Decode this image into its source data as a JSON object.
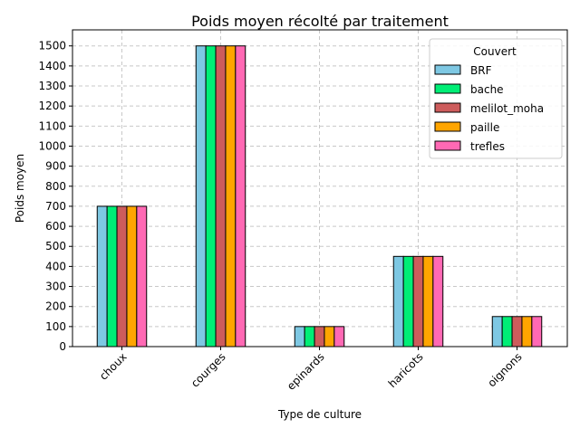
{
  "chart_data": {
    "type": "bar",
    "title": "Poids moyen récolté par traitement",
    "xlabel": "Type de culture",
    "ylabel": "Poids moyen",
    "categories": [
      "choux",
      "courges",
      "epinards",
      "haricots",
      "oignons"
    ],
    "ylim": [
      0,
      1580
    ],
    "yticks": [
      0,
      100,
      200,
      300,
      400,
      500,
      600,
      700,
      800,
      900,
      1000,
      1100,
      1200,
      1300,
      1400,
      1500
    ],
    "grid": true,
    "legend": {
      "title": "Couvert",
      "placement": "top-right"
    },
    "series": [
      {
        "name": "BRF",
        "color": "#7ec8e3",
        "values": [
          700,
          1500,
          100,
          450,
          150
        ]
      },
      {
        "name": "bache",
        "color": "#00ee76",
        "values": [
          700,
          1500,
          100,
          450,
          150
        ]
      },
      {
        "name": "melilot_moha",
        "color": "#cd5c5c",
        "values": [
          700,
          1500,
          100,
          450,
          150
        ]
      },
      {
        "name": "paille",
        "color": "#ffa500",
        "values": [
          700,
          1500,
          100,
          450,
          150
        ]
      },
      {
        "name": "trefles",
        "color": "#ff69b4",
        "values": [
          700,
          1500,
          100,
          450,
          150
        ]
      }
    ]
  }
}
